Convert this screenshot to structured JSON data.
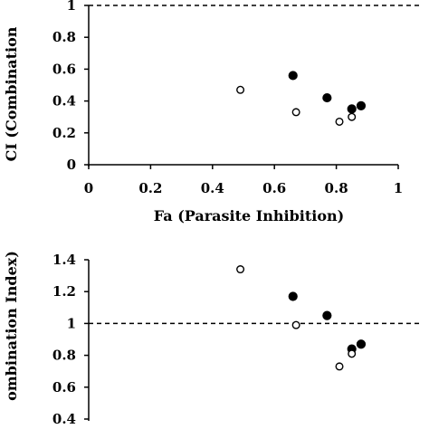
{
  "chart_data": [
    {
      "type": "scatter",
      "xlabel": "Fa (Parasite Inhibition)",
      "ylabel": "CI (Combination",
      "xlim": [
        0,
        1
      ],
      "ylim": [
        0,
        1
      ],
      "xticks": [
        "0",
        "0.2",
        "0.4",
        "0.6",
        "0.8",
        "1"
      ],
      "yticks": [
        "0",
        "0.2",
        "0.4",
        "0.6",
        "0.8",
        "1"
      ],
      "reference_line": 1,
      "grid": false,
      "series": [
        {
          "marker": "filled",
          "points": [
            [
              0.66,
              0.56
            ],
            [
              0.77,
              0.42
            ],
            [
              0.85,
              0.35
            ],
            [
              0.88,
              0.37
            ]
          ]
        },
        {
          "marker": "open",
          "points": [
            [
              0.49,
              0.47
            ],
            [
              0.67,
              0.33
            ],
            [
              0.81,
              0.27
            ],
            [
              0.85,
              0.3
            ]
          ]
        }
      ]
    },
    {
      "type": "scatter",
      "xlabel": "",
      "ylabel": "ombination Index)",
      "ylim": [
        0.4,
        1.4
      ],
      "yticks": [
        "0.4",
        "0.6",
        "0.8",
        "1",
        "1.2",
        "1.4"
      ],
      "reference_line": 1,
      "grid": false,
      "series": [
        {
          "marker": "filled",
          "points": [
            [
              0.66,
              1.17
            ],
            [
              0.77,
              1.05
            ],
            [
              0.85,
              0.84
            ],
            [
              0.88,
              0.87
            ]
          ]
        },
        {
          "marker": "open",
          "points": [
            [
              0.49,
              1.34
            ],
            [
              0.67,
              0.99
            ],
            [
              0.81,
              0.73
            ],
            [
              0.85,
              0.81
            ]
          ]
        }
      ]
    }
  ]
}
